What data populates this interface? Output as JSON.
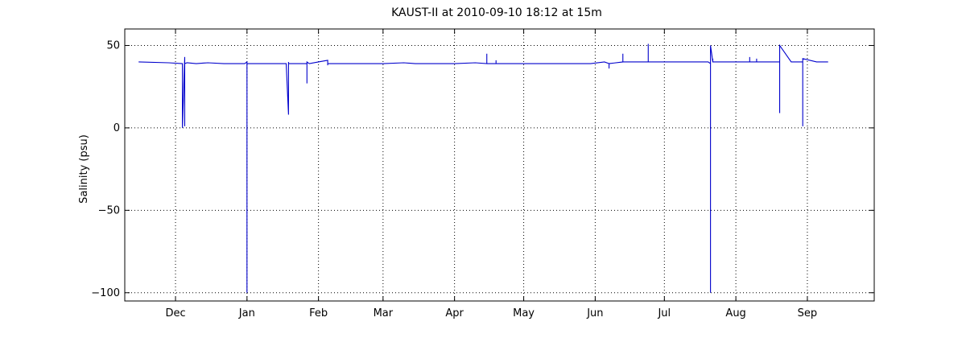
{
  "chart_data": {
    "type": "line",
    "title": "KAUST-II at 2010-09-10 18:12 at 15m",
    "xlabel": "",
    "ylabel": "Salinity (psu)",
    "ylim": [
      -105,
      60
    ],
    "yticks": [
      50,
      0,
      -50,
      -100
    ],
    "ytick_labels": [
      "50",
      "0",
      "−50",
      "−100"
    ],
    "xlim": [
      "2009-11-09",
      "2010-09-30"
    ],
    "xticks": [
      "2009-12-01",
      "2010-01-01",
      "2010-02-01",
      "2010-03-01",
      "2010-04-01",
      "2010-05-01",
      "2010-06-01",
      "2010-07-01",
      "2010-08-01",
      "2010-09-01"
    ],
    "xtick_labels": [
      "Dec",
      "Jan",
      "Feb",
      "Mar",
      "Apr",
      "May",
      "Jun",
      "Jul",
      "Aug",
      "Sep"
    ],
    "grid": true,
    "color": "#0000cc",
    "series": [
      {
        "x": [
          "2009-11-15",
          "2009-11-28",
          "2009-12-04",
          "2009-12-04",
          "2009-12-05",
          "2009-12-05",
          "2009-12-05",
          "2009-12-05",
          "2009-12-06",
          "2009-12-10",
          "2009-12-15",
          "2009-12-22",
          "2009-12-31",
          "2010-01-01",
          "2010-01-01",
          "2010-01-01",
          "2010-01-02",
          "2010-01-10",
          "2010-01-18",
          "2010-01-19",
          "2010-01-19",
          "2010-01-19",
          "2010-01-20",
          "2010-01-27",
          "2010-01-27",
          "2010-01-27",
          "2010-01-28",
          "2010-02-01",
          "2010-02-05",
          "2010-02-05",
          "2010-02-05",
          "2010-02-15",
          "2010-03-01",
          "2010-03-10",
          "2010-03-15",
          "2010-03-20",
          "2010-04-01",
          "2010-04-10",
          "2010-04-15",
          "2010-04-15",
          "2010-04-15",
          "2010-04-19",
          "2010-04-19",
          "2010-04-19",
          "2010-05-01",
          "2010-05-15",
          "2010-05-30",
          "2010-06-05",
          "2010-06-07",
          "2010-06-07",
          "2010-06-07",
          "2010-06-13",
          "2010-06-13",
          "2010-06-13",
          "2010-06-24",
          "2010-06-24",
          "2010-06-24",
          "2010-07-01",
          "2010-07-10",
          "2010-07-20",
          "2010-07-21",
          "2010-07-21",
          "2010-07-21",
          "2010-07-22",
          "2010-07-22",
          "2010-07-22",
          "2010-07-25",
          "2010-08-01",
          "2010-08-07",
          "2010-08-07",
          "2010-08-07",
          "2010-08-10",
          "2010-08-10",
          "2010-08-10",
          "2010-08-15",
          "2010-08-20",
          "2010-08-20",
          "2010-08-20",
          "2010-08-25",
          "2010-08-30",
          "2010-08-30",
          "2010-08-30",
          "2010-09-05",
          "2010-09-10"
        ],
        "y": [
          40,
          39.5,
          39,
          0,
          43,
          1,
          39,
          39,
          39.5,
          39,
          39.5,
          39,
          39,
          40,
          -100,
          39,
          39,
          39,
          39,
          8,
          40,
          39,
          39,
          39,
          27,
          40,
          39,
          40,
          41,
          38,
          39,
          39,
          39,
          39.5,
          39,
          39,
          39,
          39.5,
          39,
          45,
          39,
          39,
          41,
          39,
          39,
          39,
          39,
          40,
          39,
          36,
          39,
          40,
          45,
          40,
          40,
          51,
          40,
          40,
          40,
          40,
          39,
          -100,
          50,
          40,
          42,
          40,
          40,
          40,
          40,
          43,
          40,
          40,
          42,
          40,
          40,
          40,
          9,
          50,
          40,
          40,
          1,
          42,
          40,
          40
        ]
      }
    ]
  }
}
